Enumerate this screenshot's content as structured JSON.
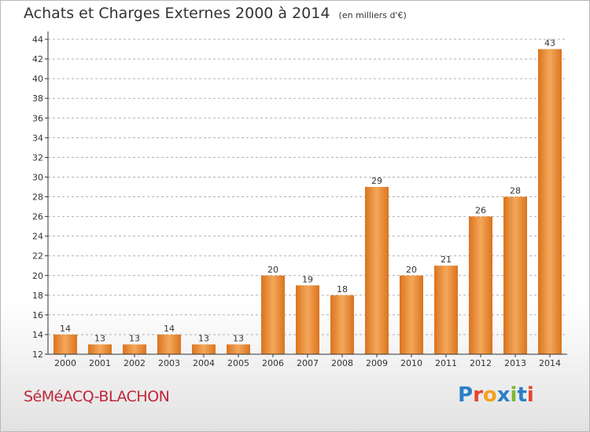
{
  "header": {
    "title": "Achats et Charges Externes 2000 à 2014",
    "subtitle": "(en milliers d'€)"
  },
  "footer": {
    "place_name": "SéMéACQ-BLACHON",
    "logo_letters": [
      "P",
      "r",
      "o",
      "x",
      "i",
      "t",
      "i"
    ],
    "logo_colors": [
      "#2a7fc9",
      "#e8432b",
      "#f4a11d",
      "#2a7fc9",
      "#7cb82f",
      "#2a7fc9",
      "#e8432b"
    ]
  },
  "colors": {
    "bar_light": "#f5a85a",
    "bar_dark": "#d9741f",
    "grid": "#b0b0b0",
    "axis": "#333333"
  },
  "chart_data": {
    "type": "bar",
    "title": "Achats et Charges Externes 2000 à 2014",
    "subtitle": "(en milliers d'€)",
    "xlabel": "",
    "ylabel": "",
    "categories": [
      "2000",
      "2001",
      "2002",
      "2003",
      "2004",
      "2005",
      "2006",
      "2007",
      "2008",
      "2009",
      "2010",
      "2011",
      "2012",
      "2013",
      "2014"
    ],
    "values": [
      14,
      13,
      13,
      14,
      13,
      13,
      20,
      19,
      18,
      29,
      20,
      21,
      26,
      28,
      43
    ],
    "ylim": [
      12,
      44
    ],
    "yticks": [
      12,
      14,
      16,
      18,
      20,
      22,
      24,
      26,
      28,
      30,
      32,
      34,
      36,
      38,
      40,
      42,
      44
    ],
    "grid": true,
    "legend": "none"
  }
}
